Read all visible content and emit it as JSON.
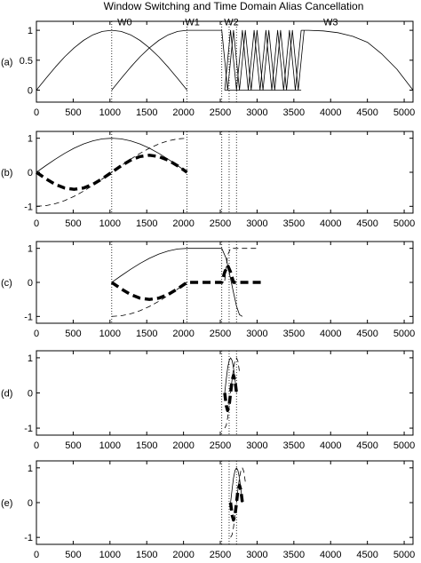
{
  "title": "Window Switching and Time Domain Alias Cancellation",
  "x_ticks": [
    "0",
    "500",
    "1000",
    "1500",
    "2000",
    "2500",
    "3000",
    "3500",
    "4000",
    "4500",
    "5000"
  ],
  "chart_data": [
    {
      "type": "line",
      "panel_label": "(a)",
      "xlim": [
        0,
        5120
      ],
      "ylim": [
        -0.2,
        1.15
      ],
      "y_ticks": [
        "0",
        "0.5",
        "1"
      ],
      "y_tick_values": [
        0,
        0.5,
        1
      ],
      "annotations": [
        {
          "text": "W0",
          "x": 1200,
          "y": 1.08
        },
        {
          "text": "W1",
          "x": 2120,
          "y": 1.08
        },
        {
          "text": "W2",
          "x": 2650,
          "y": 1.08
        },
        {
          "text": "W3",
          "x": 4000,
          "y": 1.08
        }
      ],
      "vlines": [
        1024,
        2048,
        2520,
        2620,
        2720
      ],
      "series": [
        {
          "style": "solid",
          "x": [
            0,
            128,
            256,
            384,
            512,
            640,
            768,
            896,
            1024
          ],
          "y": [
            0,
            0.195,
            0.383,
            0.556,
            0.707,
            0.831,
            0.924,
            0.981,
            1
          ]
        },
        {
          "style": "solid",
          "x": [
            1024,
            1152,
            1280,
            1408,
            1536,
            1664,
            1792,
            1920,
            2048
          ],
          "y": [
            1,
            0.981,
            0.924,
            0.831,
            0.707,
            0.556,
            0.383,
            0.195,
            0
          ]
        },
        {
          "style": "solid",
          "x": [
            1024,
            1152,
            1280,
            1408,
            1536,
            1664,
            1792,
            1920,
            2048,
            2176,
            2304,
            2432,
            2520
          ],
          "y": [
            0,
            0.195,
            0.383,
            0.556,
            0.707,
            0.831,
            0.924,
            0.981,
            1,
            1,
            1,
            1,
            1
          ]
        },
        {
          "style": "solid",
          "x": [
            2520,
            2600,
            2680,
            2760,
            2840,
            2920,
            3000,
            3080,
            3160,
            3240,
            3320,
            3400,
            3480,
            3560,
            3640
          ],
          "y": [
            1,
            0,
            1,
            0,
            1,
            0,
            1,
            0,
            1,
            0,
            1,
            0,
            1,
            0,
            1
          ]
        },
        {
          "style": "solid",
          "x": [
            2560,
            2640,
            2720,
            2800,
            2880,
            2960,
            3040,
            3120,
            3200,
            3280,
            3360,
            3440,
            3520,
            3600
          ],
          "y": [
            0,
            1,
            0,
            1,
            0,
            1,
            0,
            1,
            0,
            1,
            0,
            1,
            0,
            1
          ]
        },
        {
          "style": "solid",
          "x": [
            2560,
            3600
          ],
          "y": [
            0,
            0
          ]
        },
        {
          "style": "solid",
          "x": [
            3600,
            3700,
            3900,
            4100,
            4300,
            4500,
            4700,
            4900,
            5120
          ],
          "y": [
            1,
            1,
            0.99,
            0.96,
            0.9,
            0.8,
            0.6,
            0.35,
            0
          ]
        }
      ]
    },
    {
      "type": "line",
      "panel_label": "(b)",
      "xlim": [
        0,
        5120
      ],
      "ylim": [
        -1.2,
        1.2
      ],
      "y_ticks": [
        "-1",
        "0",
        "1"
      ],
      "y_tick_values": [
        -1,
        0,
        1
      ],
      "vlines": [
        1024,
        2048,
        2520,
        2620,
        2720
      ],
      "series": [
        {
          "style": "solid",
          "x": [
            0,
            128,
            256,
            384,
            512,
            640,
            768,
            896,
            1024,
            1152,
            1280,
            1408,
            1536,
            1664,
            1792,
            1920,
            2048
          ],
          "y": [
            0,
            0.195,
            0.383,
            0.556,
            0.707,
            0.831,
            0.924,
            0.981,
            1,
            0.981,
            0.924,
            0.831,
            0.707,
            0.556,
            0.383,
            0.195,
            0
          ]
        },
        {
          "style": "dashed",
          "x": [
            0,
            128,
            256,
            384,
            512,
            640,
            768,
            896,
            1024,
            1152,
            1280,
            1408,
            1536,
            1664,
            1792,
            1920,
            2048
          ],
          "y": [
            -1,
            -0.981,
            -0.924,
            -0.831,
            -0.707,
            -0.556,
            -0.383,
            -0.195,
            0,
            0.195,
            0.383,
            0.556,
            0.707,
            0.831,
            0.924,
            0.981,
            1
          ]
        },
        {
          "style": "thick-dashed",
          "x": [
            0,
            128,
            256,
            384,
            512,
            640,
            768,
            896,
            1024,
            1152,
            1280,
            1408,
            1536,
            1664,
            1792,
            1920,
            2048
          ],
          "y": [
            0,
            -0.191,
            -0.354,
            -0.462,
            -0.5,
            -0.462,
            -0.354,
            -0.191,
            0,
            0.191,
            0.354,
            0.462,
            0.5,
            0.462,
            0.354,
            0.191,
            0
          ]
        }
      ]
    },
    {
      "type": "line",
      "panel_label": "(c)",
      "xlim": [
        0,
        5120
      ],
      "ylim": [
        -1.2,
        1.2
      ],
      "y_ticks": [
        "-1",
        "0",
        "1"
      ],
      "y_tick_values": [
        -1,
        0,
        1
      ],
      "vlines": [
        1024,
        2048,
        2520,
        2620,
        2720
      ],
      "series": [
        {
          "style": "solid",
          "x": [
            1024,
            1152,
            1280,
            1408,
            1536,
            1664,
            1792,
            1920,
            2048,
            2200,
            2400,
            2520,
            2580,
            2620,
            2680,
            2720,
            2760,
            2800
          ],
          "y": [
            0,
            0.195,
            0.383,
            0.556,
            0.707,
            0.831,
            0.924,
            0.981,
            1,
            1,
            1,
            1,
            0.7,
            0.3,
            -0.3,
            -0.7,
            -0.95,
            -1
          ]
        },
        {
          "style": "dashed",
          "x": [
            1024,
            1152,
            1280,
            1408,
            1536,
            1664,
            1792,
            1920,
            2048
          ],
          "y": [
            -1,
            -0.981,
            -0.924,
            -0.831,
            -0.707,
            -0.556,
            -0.383,
            -0.195,
            0
          ]
        },
        {
          "style": "dashed",
          "x": [
            2560,
            2600,
            2640,
            2680,
            2720,
            2800,
            3000
          ],
          "y": [
            0.05,
            0.8,
            1,
            1,
            1,
            1,
            1
          ]
        },
        {
          "style": "thick-dashed",
          "x": [
            1024,
            1152,
            1280,
            1408,
            1536,
            1664,
            1792,
            1920,
            2048,
            2300,
            2520,
            2560,
            2600,
            2640,
            2680,
            3080
          ],
          "y": [
            0,
            -0.191,
            -0.354,
            -0.462,
            -0.5,
            -0.462,
            -0.354,
            -0.191,
            0,
            0,
            0,
            0.3,
            0.5,
            0.3,
            0,
            0
          ]
        }
      ]
    },
    {
      "type": "line",
      "panel_label": "(d)",
      "xlim": [
        0,
        5120
      ],
      "ylim": [
        -1.2,
        1.2
      ],
      "y_ticks": [
        "-1",
        "0",
        "1"
      ],
      "y_tick_values": [
        -1,
        0,
        1
      ],
      "vlines": [
        2520,
        2620,
        2720
      ],
      "series": [
        {
          "style": "solid",
          "x": [
            2560,
            2580,
            2600,
            2620,
            2640,
            2660,
            2680,
            2700,
            2720
          ],
          "y": [
            0,
            0.383,
            0.707,
            0.924,
            1,
            0.924,
            0.707,
            0.383,
            0
          ]
        },
        {
          "style": "dashed",
          "x": [
            2560,
            2580,
            2600,
            2620,
            2640,
            2660,
            2680,
            2700,
            2720,
            2740,
            2760
          ],
          "y": [
            -1,
            -0.924,
            -0.707,
            -0.383,
            0,
            0.383,
            0.707,
            0.924,
            1,
            0.9,
            0.6
          ]
        },
        {
          "style": "thick-dashed",
          "x": [
            2560,
            2580,
            2600,
            2620,
            2640,
            2660,
            2680,
            2700,
            2720
          ],
          "y": [
            0,
            -0.354,
            -0.5,
            -0.354,
            0,
            0.354,
            0.5,
            0.354,
            0
          ]
        }
      ]
    },
    {
      "type": "line",
      "panel_label": "(e)",
      "xlim": [
        0,
        5120
      ],
      "ylim": [
        -1.2,
        1.2
      ],
      "y_ticks": [
        "-1",
        "0",
        "1"
      ],
      "y_tick_values": [
        -1,
        0,
        1
      ],
      "vlines": [
        2520,
        2620,
        2720
      ],
      "series": [
        {
          "style": "solid",
          "x": [
            2640,
            2660,
            2680,
            2700,
            2720,
            2740,
            2760,
            2780,
            2800
          ],
          "y": [
            0,
            0.383,
            0.707,
            0.924,
            1,
            0.924,
            0.707,
            0.383,
            0
          ]
        },
        {
          "style": "dashed",
          "x": [
            2640,
            2660,
            2680,
            2700,
            2720,
            2740,
            2760,
            2780,
            2800,
            2820,
            2840
          ],
          "y": [
            -1,
            -0.924,
            -0.707,
            -0.383,
            0,
            0.383,
            0.707,
            0.924,
            1,
            0.9,
            0.6
          ]
        },
        {
          "style": "thick-dashed",
          "x": [
            2640,
            2660,
            2680,
            2700,
            2720,
            2740,
            2760,
            2780,
            2800
          ],
          "y": [
            0,
            -0.354,
            -0.5,
            -0.354,
            0,
            0.354,
            0.5,
            0.354,
            0
          ]
        }
      ]
    }
  ]
}
